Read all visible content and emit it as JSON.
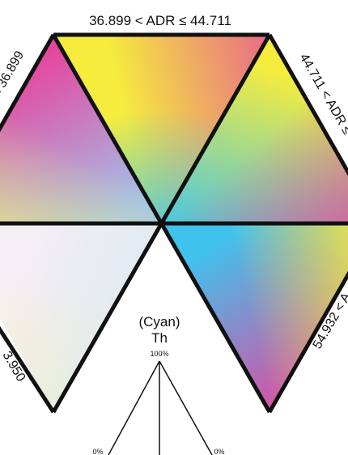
{
  "labels": {
    "top": "36.899 < ADR ≤ 44.711",
    "upper_left": "< 36.899",
    "upper_right": "44.711 < ADR ≤",
    "lower_left": "3.950",
    "lower_right": "54.932 < A",
    "key_name": "(Cyan)",
    "key_var": "Th",
    "key_top": "100%",
    "key_left": "0%",
    "key_right": "0%"
  },
  "colors": {
    "outline": "#111111",
    "cyan": "#3fc3ee",
    "magenta": "#e5469d",
    "yellow": "#f5ec3e"
  }
}
